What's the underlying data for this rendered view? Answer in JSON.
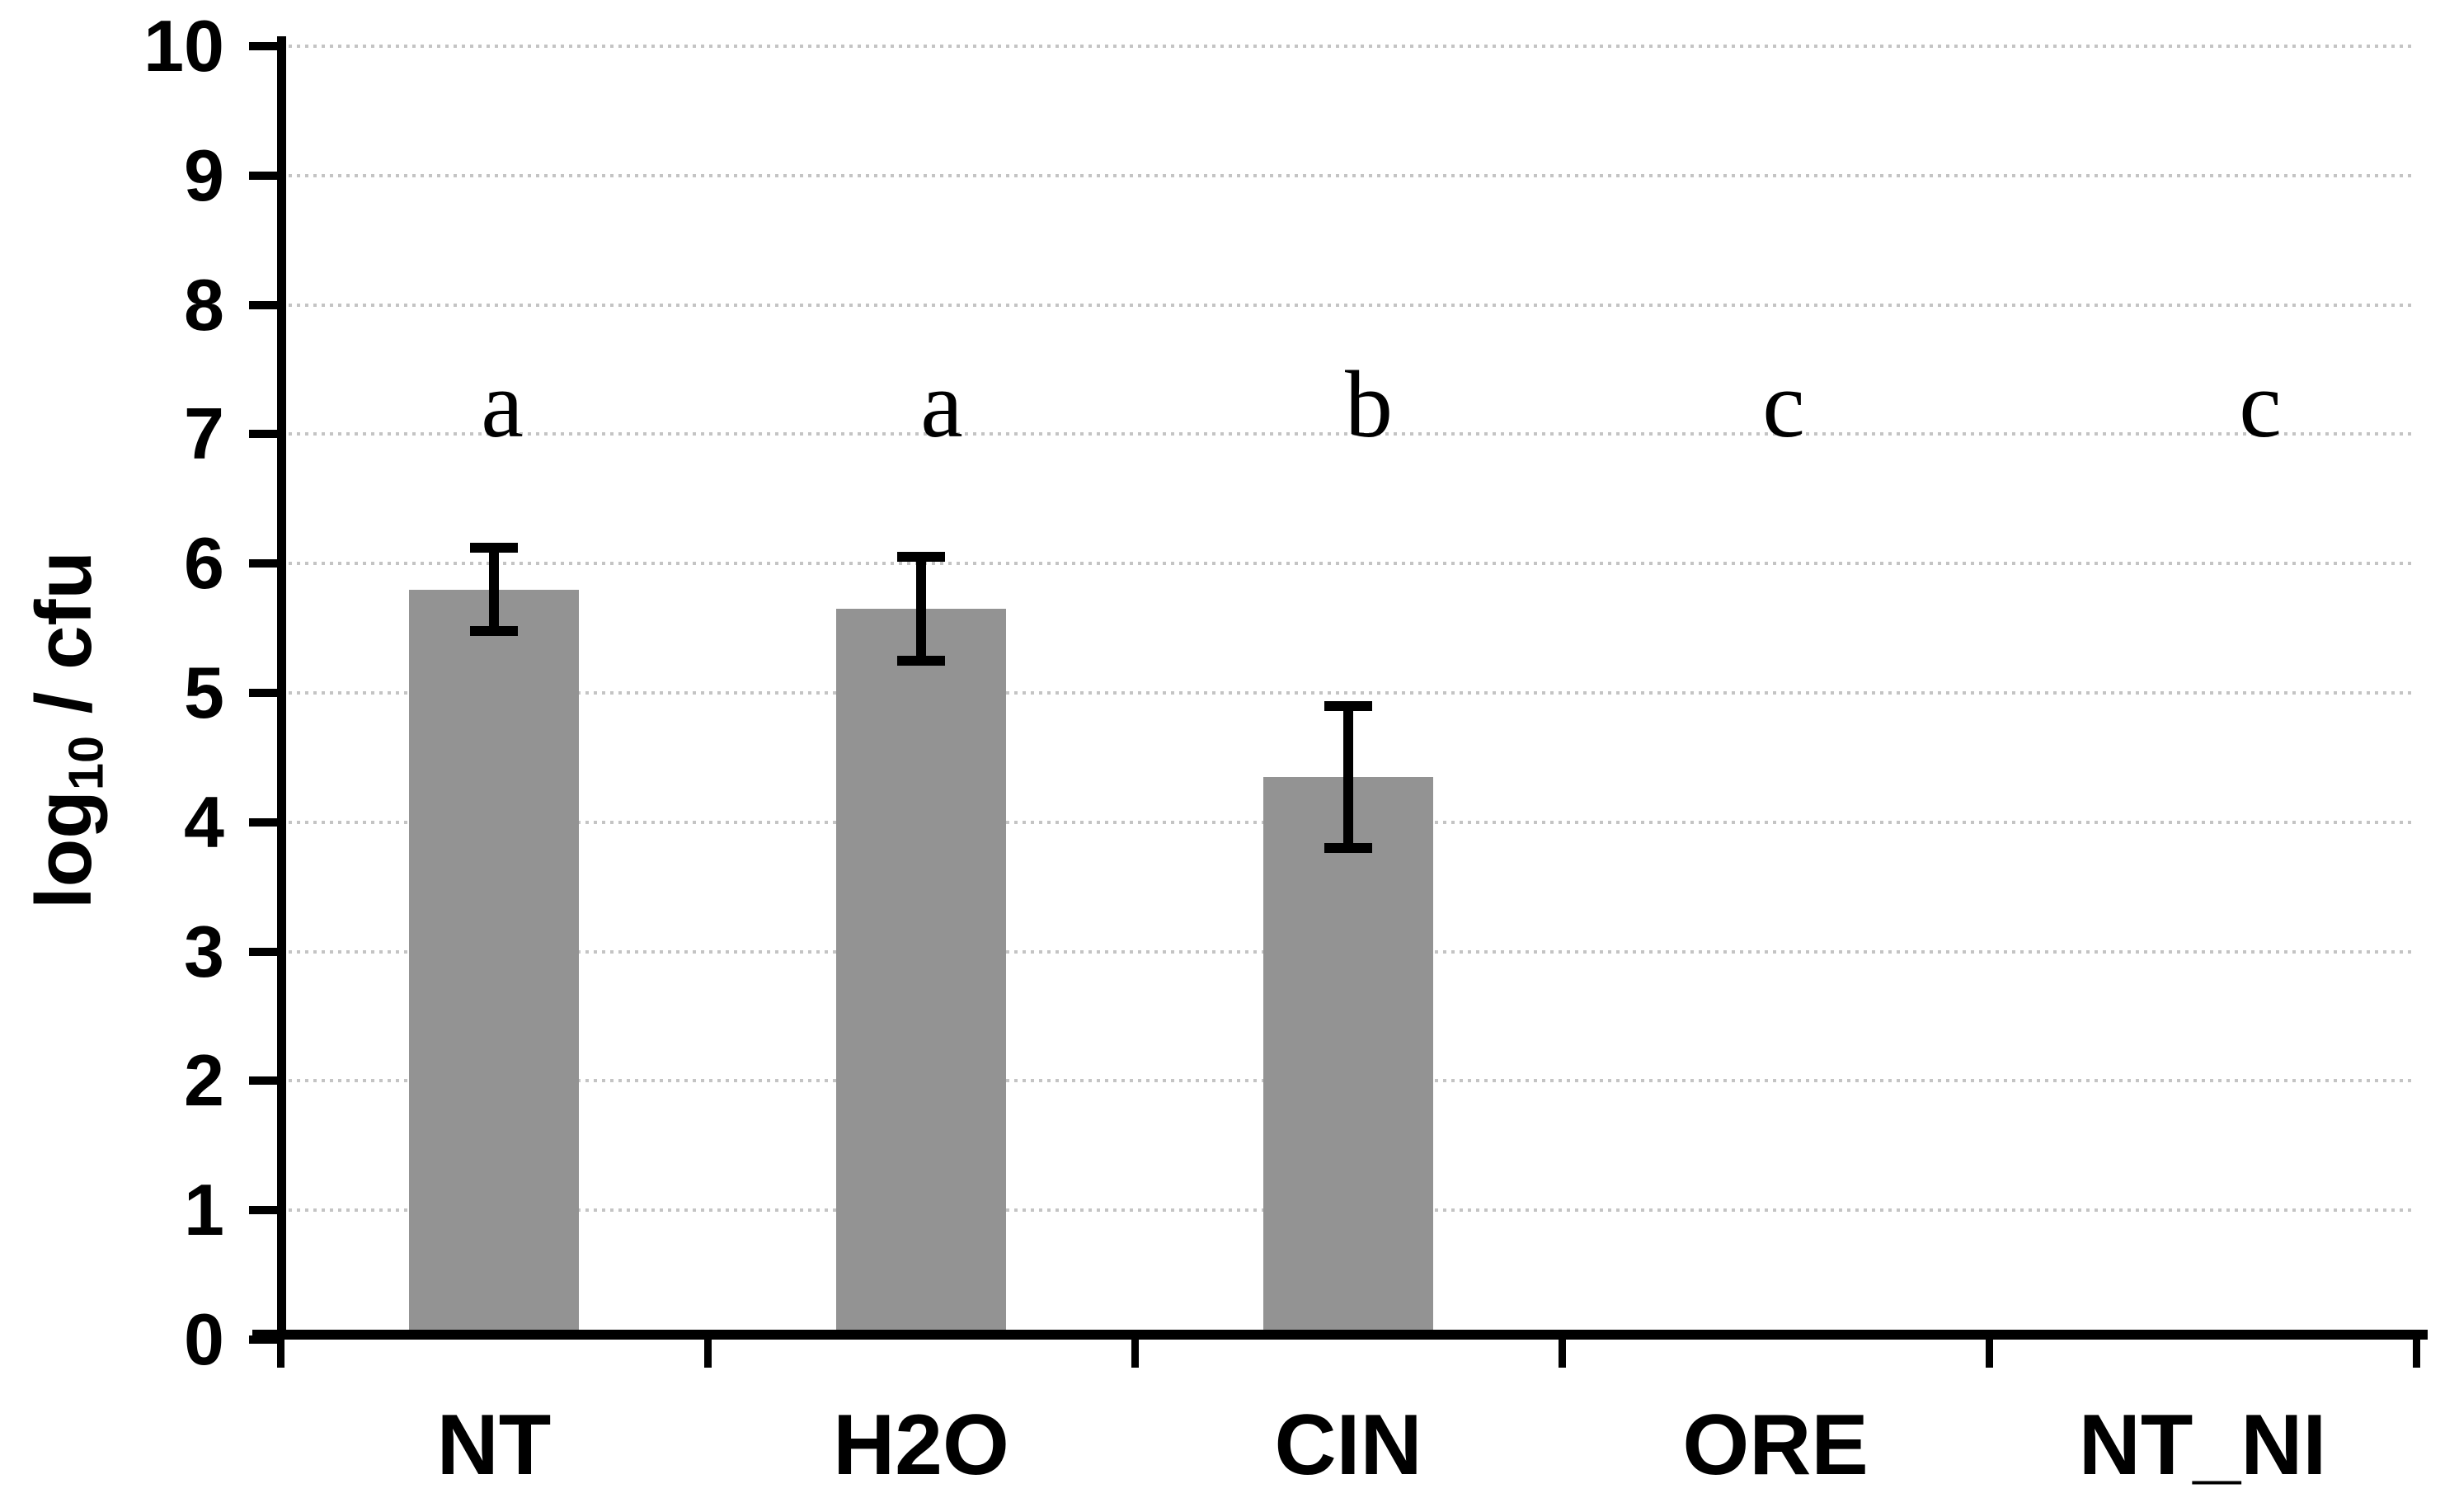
{
  "figure": {
    "background_color": "#ffffff",
    "bar_color": "#939393",
    "axis_color": "#000000",
    "error_bar_color": "#000000",
    "gridline_color": "#c4c4c4"
  },
  "chart_data": {
    "type": "bar",
    "title": "",
    "xlabel": "",
    "ylabel": "log10 / cfu",
    "ylabel_parts": {
      "prefix": "log",
      "subscript": "10",
      "suffix": " / cfu"
    },
    "ylim": [
      0,
      10
    ],
    "ytick_interval": 1,
    "ytick_labels": [
      "0",
      "1",
      "2",
      "3",
      "4",
      "5",
      "6",
      "7",
      "8",
      "9",
      "10"
    ],
    "grid": {
      "horizontal": true,
      "style": "dotted",
      "color": "#c4c4c4"
    },
    "legend": null,
    "categories": [
      "NT",
      "H2O",
      "CIN",
      "ORE",
      "NT_NI"
    ],
    "values": [
      5.8,
      5.65,
      4.35,
      0,
      0
    ],
    "errors": [
      0.32,
      0.4,
      0.55,
      0,
      0
    ],
    "significance_letters": [
      "a",
      "a",
      "b",
      "c",
      "c"
    ],
    "significance_letter_value": 7
  }
}
